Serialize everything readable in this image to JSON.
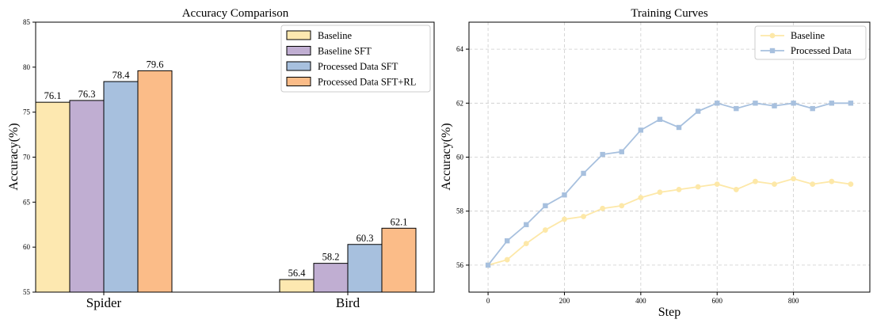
{
  "chart_data": [
    {
      "type": "bar",
      "title": "Accuracy Comparison",
      "xlabel": "",
      "ylabel": "Accuracy(%)",
      "ylim": [
        55,
        85
      ],
      "yticks": [
        "55",
        "60",
        "65",
        "70",
        "75",
        "80",
        "85"
      ],
      "grid": false,
      "legend_position": "top-right",
      "categories": [
        "Spider",
        "Bird"
      ],
      "series": [
        {
          "name": "Baseline",
          "color": "#fde8b0",
          "values": [
            76.1,
            56.4
          ],
          "labels": [
            "76.1",
            "56.4"
          ]
        },
        {
          "name": "Baseline SFT",
          "color": "#c0aed2",
          "values": [
            76.3,
            58.2
          ],
          "labels": [
            "76.3",
            "58.2"
          ]
        },
        {
          "name": "Processed Data SFT",
          "color": "#a7c0de",
          "values": [
            78.4,
            60.3
          ],
          "labels": [
            "78.4",
            "60.3"
          ]
        },
        {
          "name": "Processed Data SFT+RL",
          "color": "#fbbc88",
          "values": [
            79.6,
            62.1
          ],
          "labels": [
            "79.6",
            "62.1"
          ]
        }
      ]
    },
    {
      "type": "line",
      "title": "Training Curves",
      "xlabel": "Step",
      "ylabel": "Accuracy(%)",
      "xlim": [
        -50,
        1000
      ],
      "ylim": [
        55,
        65
      ],
      "xticks": [
        "0",
        "200",
        "400",
        "600",
        "800"
      ],
      "yticks": [
        "56",
        "58",
        "60",
        "62",
        "64"
      ],
      "grid": true,
      "legend_position": "top-right",
      "x": [
        0,
        50,
        100,
        150,
        200,
        250,
        300,
        350,
        400,
        450,
        500,
        550,
        600,
        650,
        700,
        750,
        800,
        850,
        900,
        950
      ],
      "series": [
        {
          "name": "Baseline",
          "color": "#fde8a8",
          "marker": "circle",
          "values": [
            56.0,
            56.2,
            56.8,
            57.3,
            57.7,
            57.8,
            58.1,
            58.2,
            58.5,
            58.7,
            58.8,
            58.9,
            59.0,
            58.8,
            59.1,
            59.0,
            59.2,
            59.0,
            59.1,
            59.0
          ]
        },
        {
          "name": "Processed Data",
          "color": "#a7c0de",
          "marker": "square",
          "values": [
            56.0,
            56.9,
            57.5,
            58.2,
            58.6,
            59.4,
            60.1,
            60.2,
            61.0,
            61.4,
            61.1,
            61.7,
            62.0,
            61.8,
            62.0,
            61.9,
            62.0,
            61.8,
            62.0,
            62.0
          ]
        }
      ]
    }
  ]
}
